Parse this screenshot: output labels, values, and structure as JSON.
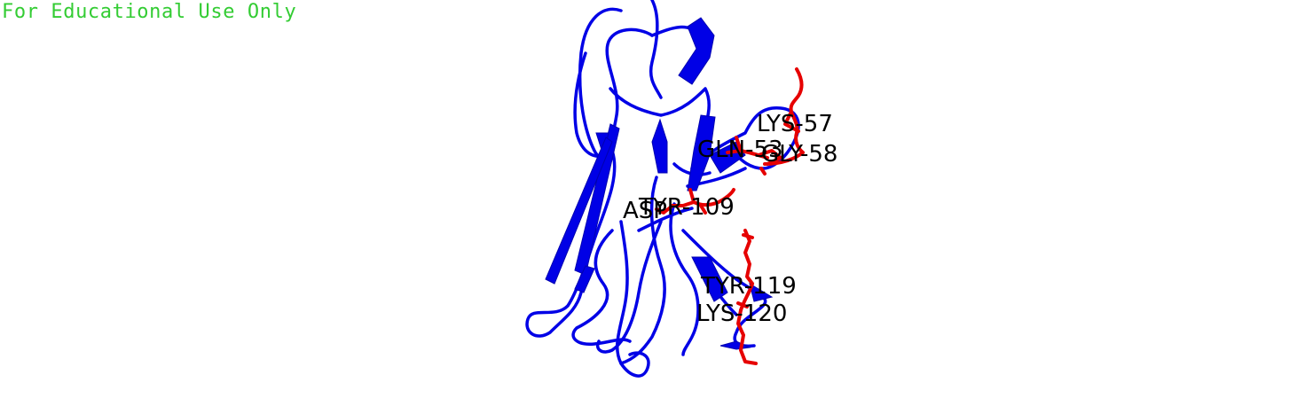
{
  "watermark": {
    "text": "For Educational Use Only",
    "color": "#33cc33"
  },
  "colors": {
    "backbone": "#0000e6",
    "highlight": "#e60000",
    "label": "#000000",
    "background": "#ffffff"
  },
  "residues": [
    {
      "id": "lys57",
      "label": "LYS-57"
    },
    {
      "id": "gln53",
      "label": "GLN-53"
    },
    {
      "id": "gly58",
      "label": "GLY-58"
    },
    {
      "id": "asp",
      "label": "ASP"
    },
    {
      "id": "tyr109",
      "label": "TYR-109"
    },
    {
      "id": "tyr119",
      "label": "TYR-119"
    },
    {
      "id": "lys120",
      "label": "LYS-120"
    }
  ]
}
